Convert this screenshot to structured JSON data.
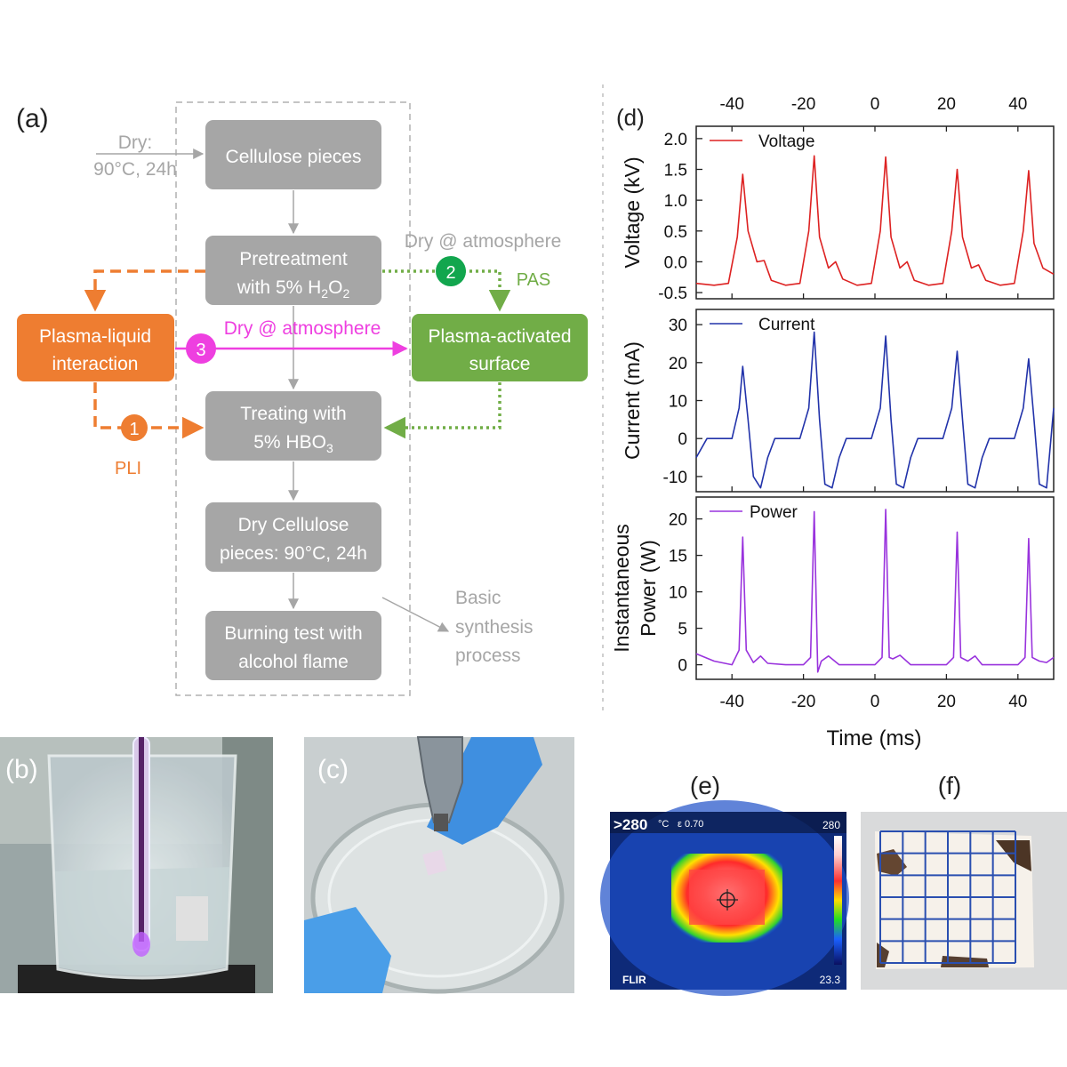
{
  "colors": {
    "gray_box": "#a6a6a6",
    "gray_text": "#a6a6a6",
    "orange": "#ee7d31",
    "green": "#71ad47",
    "green_dark": "#12a64e",
    "magenta": "#ee3fe0",
    "voltage": "#dd2222",
    "current": "#2233aa",
    "power": "#9933dd"
  },
  "panel_a": {
    "label": "(a)",
    "dry_input": {
      "line1": "Dry:",
      "line2": "90°C, 24h"
    },
    "boxes": {
      "cellulose": "Cellulose pieces",
      "pretreat_line1": "Pretreatment",
      "pretreat_line2": "with 5% H",
      "pretreat_sub1": "2",
      "pretreat_mid": "O",
      "pretreat_sub2": "2",
      "treat_line1": "Treating with",
      "treat_line2": "5% HBO",
      "treat_sub": "3",
      "dry_line1": "Dry Cellulose",
      "dry_line2": "pieces: 90°C, 24h",
      "burn_line1": "Burning test with",
      "burn_line2": "alcohol flame",
      "pli_line1": "Plasma-liquid",
      "pli_line2": "interaction",
      "pas_line1": "Plasma-activated",
      "pas_line2": "surface"
    },
    "annotations": {
      "dry_atm_gray": "Dry @ atmosphere",
      "dry_atm_magenta": "Dry @ atmosphere",
      "pas": "PAS",
      "pli": "PLI",
      "basic_line1": "Basic",
      "basic_line2": "synthesis",
      "basic_line3": "process"
    },
    "circles": [
      "1",
      "2",
      "3"
    ]
  },
  "panel_b": {
    "label": "(b)"
  },
  "panel_c": {
    "label": "(c)"
  },
  "panel_e": {
    "label": "(e)",
    "max_readout": ">280",
    "unit": "°C",
    "emissivity": "ε 0.70",
    "scale_max": "280",
    "scale_min": "23.3",
    "brand": "FLIR"
  },
  "panel_f": {
    "label": "(f)"
  },
  "chart_data": {
    "type": "line",
    "title": "(d)",
    "xlabel": "Time (ms)",
    "xlim": [
      -50,
      50
    ],
    "x_ticks": [
      "-40",
      "-20",
      "0",
      "20",
      "40"
    ],
    "x_tick_values": [
      -40,
      -20,
      0,
      20,
      40
    ],
    "top_x_ticks": [
      "-40",
      "-20",
      "0",
      "20",
      "40"
    ],
    "panels": [
      {
        "name": "Voltage",
        "ylabel": "Voltage (kV)",
        "ylim": [
          -0.6,
          2.2
        ],
        "y_ticks": [
          "2.0",
          "1.5",
          "1.0",
          "0.5",
          "0.0",
          "-0.5"
        ],
        "y_tick_values": [
          2.0,
          1.5,
          1.0,
          0.5,
          0.0,
          -0.5
        ],
        "legend": "Voltage",
        "series": {
          "x": [
            -50,
            -45,
            -41,
            -38.5,
            -37,
            -35.5,
            -33,
            -31,
            -29,
            -25,
            -21,
            -18.5,
            -17,
            -15.5,
            -13,
            -11,
            -9,
            -5,
            -1,
            1.5,
            3,
            4.5,
            7,
            9,
            11,
            15,
            19,
            21.5,
            23,
            24.5,
            27,
            29,
            31,
            35,
            39,
            41.5,
            43,
            44.5,
            47,
            50
          ],
          "y": [
            -0.35,
            -0.38,
            -0.35,
            0.4,
            1.42,
            0.5,
            0.0,
            0.02,
            -0.3,
            -0.38,
            -0.35,
            0.5,
            1.72,
            0.4,
            -0.1,
            0.0,
            -0.28,
            -0.38,
            -0.35,
            0.5,
            1.7,
            0.4,
            -0.1,
            0.0,
            -0.3,
            -0.38,
            -0.35,
            0.5,
            1.5,
            0.4,
            -0.1,
            -0.05,
            -0.3,
            -0.38,
            -0.35,
            0.5,
            1.48,
            0.3,
            -0.1,
            -0.2
          ]
        }
      },
      {
        "name": "Current",
        "ylabel": "Current (mA)",
        "ylim": [
          -14,
          34
        ],
        "y_ticks": [
          "30",
          "20",
          "10",
          "0",
          "-10"
        ],
        "y_tick_values": [
          30,
          20,
          10,
          0,
          -10
        ],
        "legend": "Current",
        "series": {
          "x": [
            -50,
            -47,
            -43,
            -40,
            -38,
            -37,
            -35.5,
            -34,
            -32,
            -30,
            -28,
            -24,
            -21,
            -18.5,
            -17,
            -15.5,
            -14,
            -12,
            -10,
            -8,
            -4,
            -1,
            1.5,
            3,
            4.5,
            6,
            8,
            10,
            12,
            16,
            19,
            21.5,
            23,
            24.5,
            26,
            28,
            30,
            32,
            36,
            39,
            41.5,
            43,
            44.5,
            46,
            48,
            50
          ],
          "y": [
            -5,
            0,
            0,
            0,
            8,
            19,
            5,
            -10,
            -13,
            -5,
            0,
            0,
            0,
            8,
            28,
            5,
            -12,
            -13,
            -5,
            0,
            0,
            0,
            8,
            27,
            5,
            -12,
            -13,
            -5,
            0,
            0,
            0,
            8,
            23,
            5,
            -12,
            -13,
            -5,
            0,
            0,
            0,
            8,
            21,
            5,
            -12,
            -13,
            8
          ]
        }
      },
      {
        "name": "Power",
        "ylabel": "Instantaneous Power (W)",
        "ylim": [
          -2,
          23
        ],
        "y_ticks": [
          "20",
          "15",
          "10",
          "5",
          "0"
        ],
        "y_tick_values": [
          20,
          15,
          10,
          5,
          0
        ],
        "legend": "Power",
        "series": {
          "x": [
            -50,
            -45,
            -40,
            -38,
            -37,
            -36,
            -34,
            -32,
            -30,
            -25,
            -20,
            -18,
            -17,
            -16,
            -15,
            -13,
            -10,
            -5,
            0,
            2,
            3,
            4,
            5,
            7,
            10,
            15,
            20,
            22,
            23,
            24,
            26,
            28,
            30,
            35,
            40,
            42,
            43,
            44,
            46,
            48,
            50
          ],
          "y": [
            1.5,
            0.5,
            0,
            2,
            17.5,
            2,
            0.3,
            1.2,
            0.2,
            0,
            0,
            1,
            21,
            -1,
            0.5,
            1.2,
            0,
            0,
            0,
            1,
            21.3,
            1,
            0.8,
            1.3,
            0,
            0,
            0,
            1,
            18.2,
            1,
            0.5,
            1.2,
            0,
            0,
            0,
            1,
            17.3,
            1,
            0.5,
            0.3,
            1
          ]
        }
      }
    ]
  }
}
